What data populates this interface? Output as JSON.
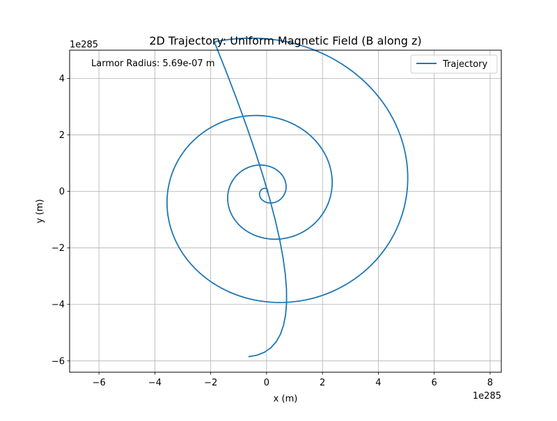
{
  "chart_data": {
    "type": "line",
    "title": "2D Trajectory: Uniform Magnetic Field (B along z)",
    "xlabel": "x (m)",
    "ylabel": "y (m)",
    "x_offset_label": "1e285",
    "y_offset_label": "1e285",
    "xlim": [
      -7.05,
      8.4
    ],
    "ylim": [
      -6.4,
      5.0
    ],
    "xticks": [
      -6,
      -4,
      -2,
      0,
      2,
      4,
      6,
      8
    ],
    "yticks": [
      -6,
      -4,
      -2,
      0,
      2,
      4
    ],
    "xtick_labels": [
      "−6",
      "−4",
      "−2",
      "0",
      "2",
      "4",
      "6",
      "8"
    ],
    "ytick_labels": [
      "−6",
      "−4",
      "−2",
      "0",
      "2",
      "4"
    ],
    "grid": true,
    "legend_position": "top-right",
    "annotation": "Larmor Radius: 5.69e-07 m",
    "series": [
      {
        "name": "Trajectory",
        "color": "#1f77b4",
        "spiral": {
          "start_angle_deg": -90,
          "start_radius": 0.0,
          "radius_growth_per_turn": 1.55,
          "outer_radius": 6.05,
          "center": [
            0.0,
            0.0
          ]
        },
        "x": [
          0.0,
          0.05,
          0.1,
          0.06,
          -0.05,
          -0.12,
          -0.08,
          0.05,
          0.17,
          0.22,
          0.12,
          -0.08,
          -0.25,
          -0.32,
          -0.22,
          0.05,
          0.32,
          0.45,
          0.38,
          0.1,
          -0.25,
          -0.5,
          -0.58,
          -0.42,
          -0.05,
          0.38,
          0.68,
          0.72,
          0.45,
          -0.05,
          -0.55,
          -0.95,
          -1.05,
          -0.8,
          -0.22,
          0.45,
          1.05,
          1.35,
          1.2,
          0.62,
          -0.2,
          -1.0,
          -1.55,
          -1.65,
          -1.25,
          -0.45,
          0.55,
          1.45,
          2.05,
          2.1,
          1.55,
          0.55,
          -0.6,
          -1.7,
          -2.25,
          -2.22,
          -1.6,
          -0.4,
          0.95,
          2.2,
          2.95,
          3.0,
          2.3,
          1.05,
          -0.55,
          -2.0,
          -3.1,
          -3.55,
          -3.2,
          -2.1,
          -0.55,
          1.25,
          2.85,
          4.0,
          4.5,
          4.25,
          3.1,
          1.35,
          -0.65
        ],
        "y": [
          0.0,
          0.05,
          0.0,
          -0.08,
          -0.05,
          0.05,
          0.15,
          0.17,
          0.08,
          -0.1,
          -0.25,
          -0.28,
          -0.15,
          0.1,
          0.32,
          0.4,
          0.28,
          0.0,
          -0.35,
          -0.55,
          -0.55,
          -0.3,
          0.1,
          0.5,
          0.75,
          0.75,
          0.45,
          -0.1,
          -0.65,
          -1.05,
          -1.1,
          -0.8,
          -0.18,
          0.55,
          1.15,
          1.48,
          1.35,
          0.8,
          -0.05,
          -0.95,
          -1.65,
          -1.95,
          -1.75,
          -1.1,
          -0.15,
          0.85,
          1.65,
          2.1,
          2.0,
          1.35,
          0.25,
          -1.0,
          -2.05,
          -2.7,
          -2.75,
          -2.15,
          -1.0,
          0.4,
          1.75,
          2.65,
          3.0,
          2.6,
          1.5,
          -0.05,
          -1.55,
          -2.75,
          -3.3,
          -3.2,
          -2.4,
          -1.05,
          0.6,
          2.1,
          3.3,
          4.05,
          4.3,
          3.95,
          2.85,
          1.1,
          -5.85
        ]
      }
    ]
  }
}
